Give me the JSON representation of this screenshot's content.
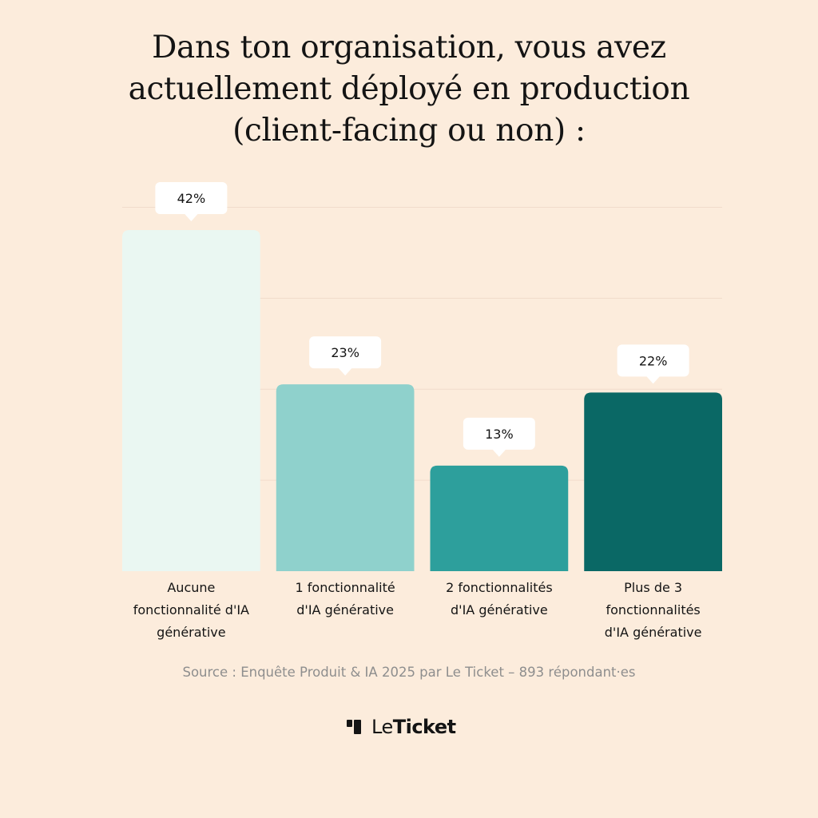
{
  "title": {
    "lines": [
      "Dans ton organisation, vous avez",
      "actuellement déployé en production",
      "(client-facing ou non) :"
    ]
  },
  "chart_data": {
    "type": "bar",
    "categories": [
      [
        "Aucune",
        "fonctionnalité d'IA",
        "générative"
      ],
      [
        "1 fonctionnalité",
        "d'IA générative"
      ],
      [
        "2 fonctionnalités",
        "d'IA générative"
      ],
      [
        "Plus de 3",
        "fonctionnalités",
        "d'IA générative"
      ]
    ],
    "values": [
      42,
      23,
      13,
      22
    ],
    "value_labels": [
      "42%",
      "23%",
      "13%",
      "22%"
    ],
    "unit": "%",
    "ylim": [
      0,
      45
    ],
    "grid": true,
    "colors": [
      "#eaf7f2",
      "#8fd1cc",
      "#2d9f9c",
      "#0a6865"
    ]
  },
  "source": "Source : Enquête Produit & IA 2025 par Le Ticket – 893 répondant·es",
  "logo": {
    "text_light": "Le",
    "text_bold": "Ticket"
  }
}
